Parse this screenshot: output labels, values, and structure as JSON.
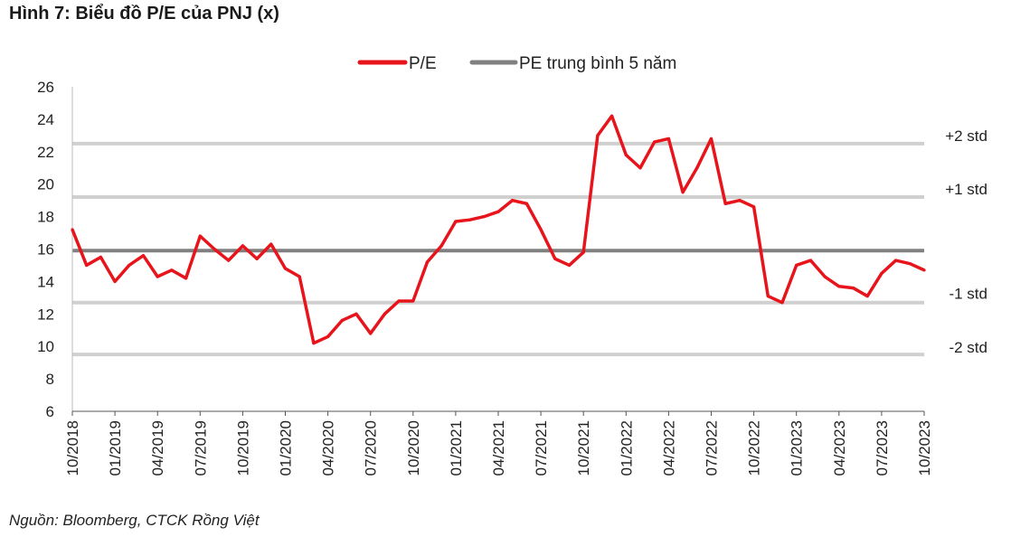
{
  "title": "Hình 7: Biểu đồ P/E của PNJ (x)",
  "source": "Nguồn: Bloomberg, CTCK Rồng Việt",
  "colors": {
    "pe": "#e8141b",
    "avg": "#808080",
    "std": "#d0d0d0"
  },
  "chart_data": {
    "type": "line",
    "ylim": [
      6,
      26
    ],
    "y_ticks": [
      "26",
      "24",
      "22",
      "20",
      "18",
      "16",
      "14",
      "12",
      "10",
      "8",
      "6"
    ],
    "x_ticks": [
      "10/2018",
      "01/2019",
      "04/2019",
      "07/2019",
      "10/2019",
      "01/2020",
      "04/2020",
      "07/2020",
      "10/2020",
      "01/2021",
      "04/2021",
      "07/2021",
      "10/2021",
      "01/2022",
      "04/2022",
      "07/2022",
      "10/2022",
      "01/2023",
      "04/2023",
      "07/2023",
      "10/2023"
    ],
    "legend": {
      "placement": "top-center",
      "pe_label": "P/E",
      "avg_label": "PE trung bình 5 năm"
    },
    "reference_lines": [
      {
        "label": "+2 std",
        "value": 22.5
      },
      {
        "label": "+1 std",
        "value": 19.2
      },
      {
        "label": "",
        "value": 15.9
      },
      {
        "label": "-1 std",
        "value": 12.7
      },
      {
        "label": "-2 std",
        "value": 9.5
      }
    ],
    "series": [
      {
        "name": "P/E",
        "x": [
          "10/2018",
          "11/2018",
          "12/2018",
          "01/2019",
          "02/2019",
          "03/2019",
          "04/2019",
          "05/2019",
          "06/2019",
          "07/2019",
          "08/2019",
          "09/2019",
          "10/2019",
          "11/2019",
          "12/2019",
          "01/2020",
          "02/2020",
          "03/2020",
          "04/2020",
          "05/2020",
          "06/2020",
          "07/2020",
          "08/2020",
          "09/2020",
          "10/2020",
          "11/2020",
          "12/2020",
          "01/2021",
          "02/2021",
          "03/2021",
          "04/2021",
          "05/2021",
          "06/2021",
          "07/2021",
          "08/2021",
          "09/2021",
          "10/2021",
          "11/2021",
          "12/2021",
          "01/2022",
          "02/2022",
          "03/2022",
          "04/2022",
          "05/2022",
          "06/2022",
          "07/2022",
          "08/2022",
          "09/2022",
          "10/2022",
          "11/2022",
          "12/2022",
          "01/2023",
          "02/2023",
          "03/2023",
          "04/2023",
          "05/2023",
          "06/2023",
          "07/2023",
          "08/2023",
          "09/2023",
          "10/2023"
        ],
        "values": [
          17.2,
          15.0,
          15.5,
          14.0,
          15.0,
          15.6,
          14.3,
          14.7,
          14.2,
          16.8,
          16.0,
          15.3,
          16.2,
          15.4,
          16.3,
          14.8,
          14.3,
          10.2,
          10.6,
          11.6,
          12.0,
          10.8,
          12.0,
          12.8,
          12.8,
          15.2,
          16.2,
          17.7,
          17.8,
          18.0,
          18.3,
          19.0,
          18.8,
          17.2,
          15.4,
          15.0,
          15.8,
          23.0,
          24.2,
          21.8,
          21.0,
          22.6,
          22.8,
          19.5,
          21.0,
          22.8,
          18.8,
          19.0,
          18.6,
          13.1,
          12.7,
          15.0,
          15.3,
          14.3,
          13.7,
          13.6,
          13.1,
          14.5,
          15.3,
          15.1,
          14.7
        ]
      }
    ]
  }
}
